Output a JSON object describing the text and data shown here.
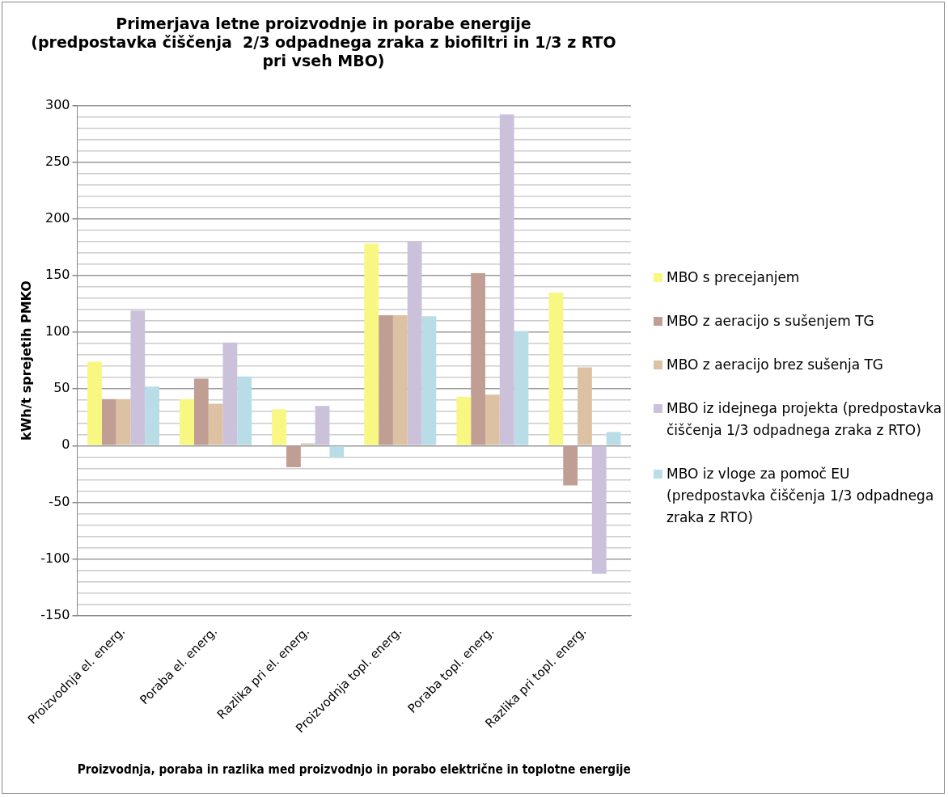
{
  "chart_data": {
    "type": "bar",
    "title": "Primerjava letne proizvodnje in porabe energije\n(predpostavka čiščenja  2/3 odpadnega zraka z biofiltri in 1/3 z RTO\npri vseh MBO)",
    "xlabel": "Proizvodnja, poraba in razlika med proizvodnjo in porabo električne in toplotne energije",
    "ylabel": "kWh/t sprejetih PMKO",
    "categories": [
      "Proizvodnja el. energ.",
      "Poraba el. energ.",
      "Razlika pri el. energ.",
      "Proizvodnja topl. energ.",
      "Poraba topl. energ.",
      "Razlika pri topl. energ."
    ],
    "series": [
      {
        "name": "MBO s precejanjem",
        "color": "#f7f782",
        "values": [
          74,
          41,
          32,
          178,
          43,
          135
        ]
      },
      {
        "name": "MBO z aeracijo s sušenjem TG",
        "color": "#c19e93",
        "values": [
          41,
          59,
          -19,
          115,
          152,
          -35
        ]
      },
      {
        "name": "MBO z aeracijo brez sušenja TG",
        "color": "#dcc1a3",
        "values": [
          41,
          37,
          2,
          115,
          45,
          69
        ]
      },
      {
        "name": "MBO iz idejnega projekta (predpostavka čiščenja 1/3 odpadnega zraka z RTO)",
        "color": "#cbc1db",
        "values": [
          119,
          91,
          35,
          180,
          292,
          -113
        ]
      },
      {
        "name": "MBO iz vloge za pomoč EU (predpostavka čiščenja 1/3 odpadnega zraka z RTO)",
        "color": "#b8dde6",
        "values": [
          52,
          61,
          -10,
          114,
          101,
          12
        ]
      }
    ],
    "ylim": [
      -150,
      300
    ],
    "yticks": [
      -150,
      {
        "value": -140,
        "label": null
      },
      {
        "value": -130,
        "label": null
      },
      {
        "value": -120,
        "label": null
      },
      {
        "value": -110,
        "label": null
      },
      -100,
      {
        "value": -90,
        "label": null
      },
      {
        "value": -80,
        "label": null
      },
      {
        "value": -70,
        "label": null
      },
      {
        "value": -60,
        "label": null
      },
      -50,
      {
        "value": -40,
        "label": null
      },
      {
        "value": -30,
        "label": null
      },
      {
        "value": -20,
        "label": null
      },
      {
        "value": -10,
        "label": null
      },
      0,
      {
        "value": 10,
        "label": null
      },
      {
        "value": 20,
        "label": null
      },
      {
        "value": 30,
        "label": null
      },
      {
        "value": 40,
        "label": null
      },
      50,
      {
        "value": 60,
        "label": null
      },
      {
        "value": 70,
        "label": null
      },
      {
        "value": 80,
        "label": null
      },
      {
        "value": 90,
        "label": null
      },
      100,
      {
        "value": 110,
        "label": null
      },
      {
        "value": 120,
        "label": null
      },
      {
        "value": 130,
        "label": null
      },
      {
        "value": 140,
        "label": null
      },
      150,
      {
        "value": 160,
        "label": null
      },
      {
        "value": 170,
        "label": null
      },
      {
        "value": 180,
        "label": null
      },
      {
        "value": 190,
        "label": null
      },
      200,
      {
        "value": 210,
        "label": null
      },
      {
        "value": 220,
        "label": null
      },
      {
        "value": 230,
        "label": null
      },
      {
        "value": 240,
        "label": null
      },
      250,
      {
        "value": 260,
        "label": null
      },
      {
        "value": 270,
        "label": null
      },
      {
        "value": 280,
        "label": null
      },
      {
        "value": 290,
        "label": null
      },
      300
    ],
    "grid": "y",
    "legend": "right"
  }
}
